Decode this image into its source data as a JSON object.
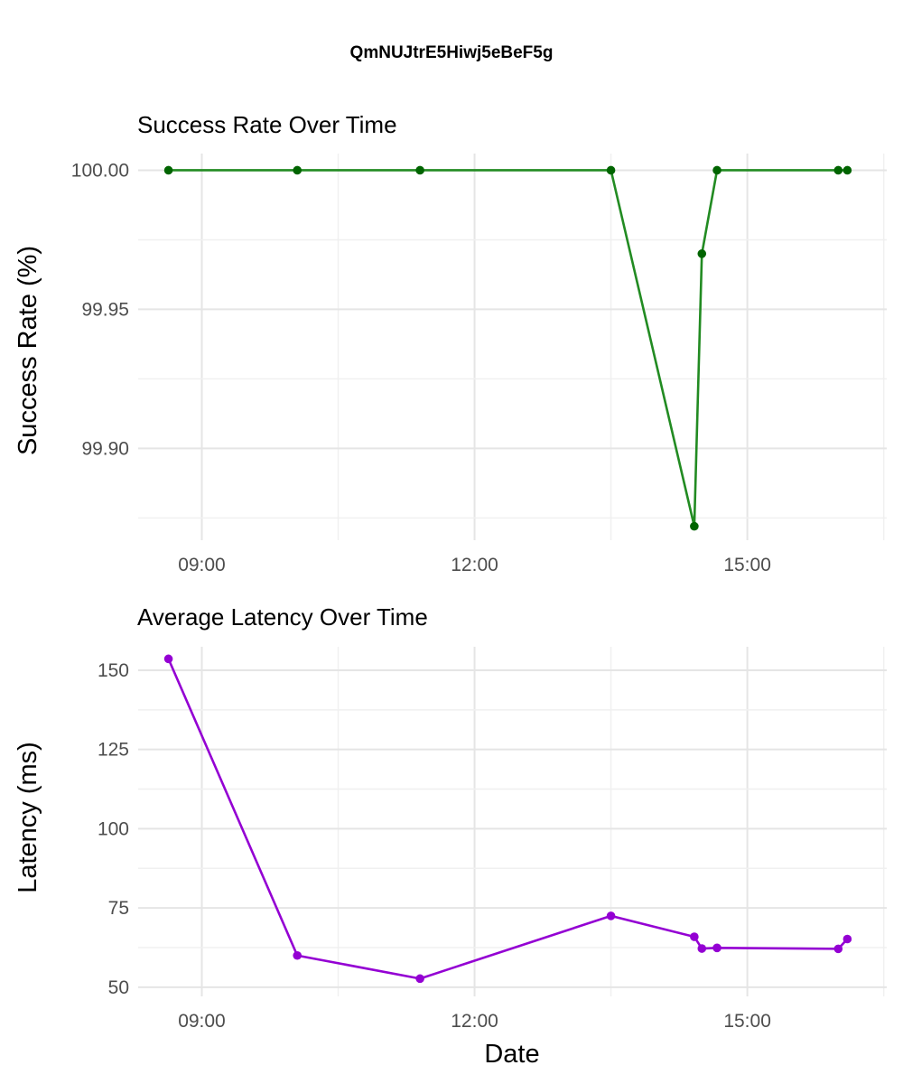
{
  "title": "QmNUJtrE5Hiwj5eBeF5g",
  "chart_data": [
    {
      "type": "line",
      "title": "Success Rate Over Time",
      "xlabel": "",
      "ylabel": "Success Rate (%)",
      "x_ticks": [
        "09:00",
        "12:00",
        "15:00"
      ],
      "y_ticks": [
        "99.90",
        "99.95",
        "100.00"
      ],
      "xlim": [
        "08:18",
        "16:32"
      ],
      "ylim": [
        99.867,
        100.006
      ],
      "grid": true,
      "line_color": "#228B22",
      "point_color": "#006400",
      "series": [
        {
          "x": [
            "08:38",
            "10:03",
            "11:24",
            "13:30",
            "14:25",
            "14:30",
            "14:40",
            "16:00",
            "16:06"
          ],
          "values": [
            100.0,
            100.0,
            100.0,
            100.0,
            99.872,
            99.97,
            100.0,
            100.0,
            100.0
          ]
        }
      ]
    },
    {
      "type": "line",
      "title": "Average Latency Over Time",
      "xlabel": "Date",
      "ylabel": "Latency (ms)",
      "x_ticks": [
        "09:00",
        "12:00",
        "15:00"
      ],
      "y_ticks": [
        "50",
        "75",
        "100",
        "125",
        "150"
      ],
      "xlim": [
        "08:18",
        "16:32"
      ],
      "ylim": [
        47.1,
        157.4
      ],
      "grid": true,
      "line_color": "#9400D3",
      "point_color": "#9400D3",
      "series": [
        {
          "x": [
            "08:38",
            "10:03",
            "11:24",
            "13:30",
            "14:25",
            "14:30",
            "14:40",
            "16:00",
            "16:06"
          ],
          "values": [
            153.6,
            60.0,
            52.7,
            72.5,
            65.9,
            62.2,
            62.4,
            62.1,
            65.2
          ]
        }
      ]
    }
  ]
}
